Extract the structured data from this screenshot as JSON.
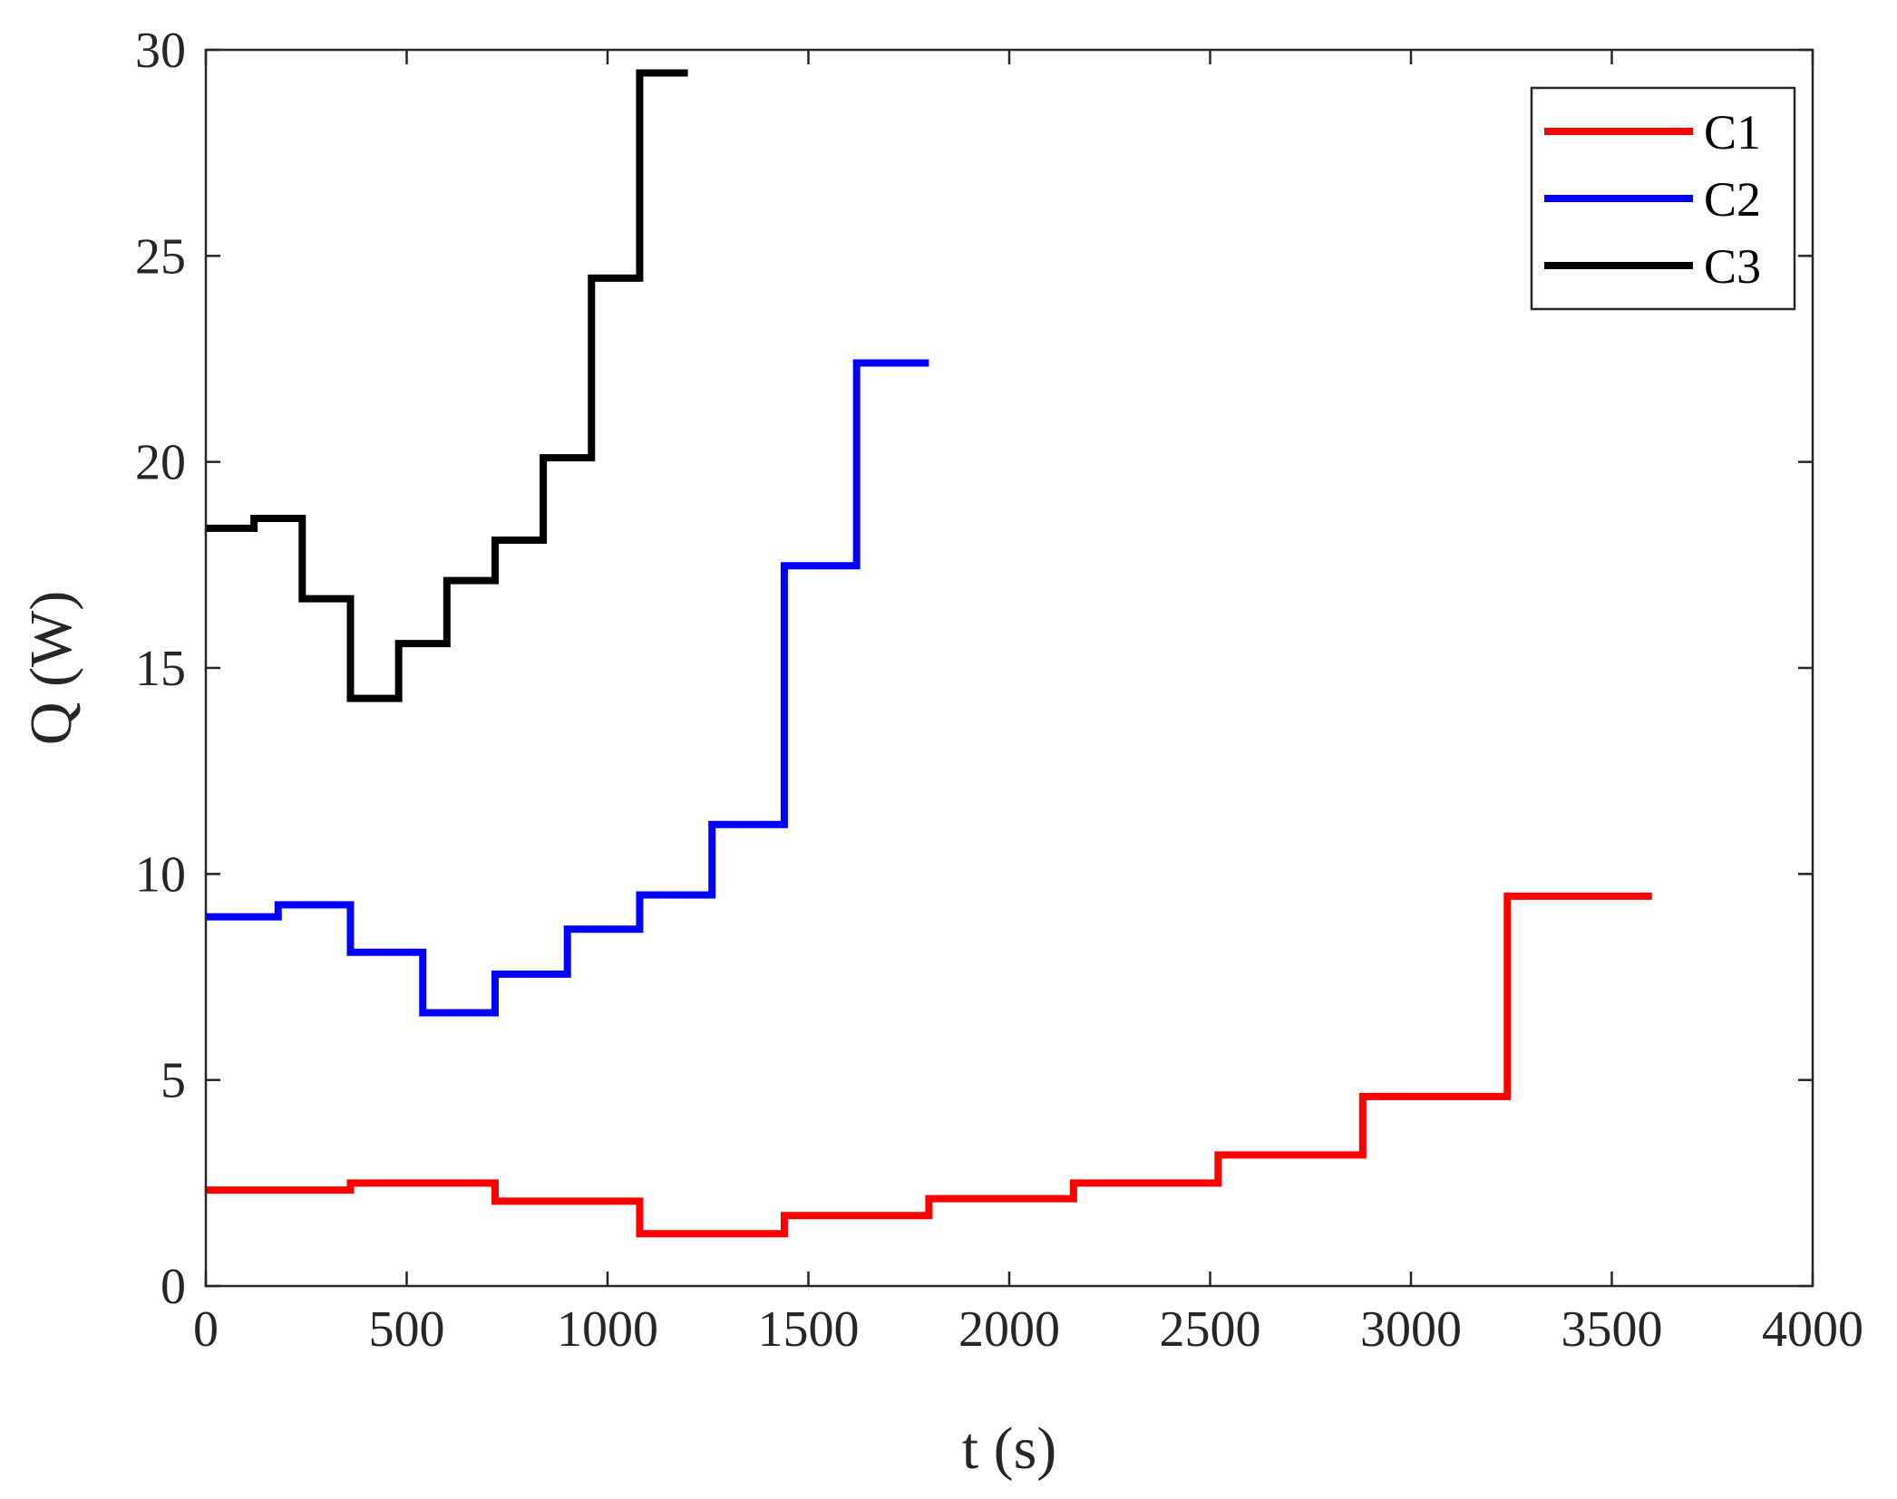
{
  "chart_data": {
    "type": "line",
    "step": "post",
    "xlabel": "t (s)",
    "ylabel": "Q (W)",
    "xlim": [
      0,
      4000
    ],
    "ylim": [
      0,
      30
    ],
    "xticks": [
      0,
      500,
      1000,
      1500,
      2000,
      2500,
      3000,
      3500,
      4000
    ],
    "yticks": [
      0,
      5,
      10,
      15,
      20,
      25,
      30
    ],
    "grid": false,
    "legend": "northeast",
    "series": [
      {
        "name": "C1",
        "color": "#ff0000",
        "x": [
          0,
          360,
          720,
          1080,
          1440,
          1800,
          2160,
          2520,
          2880,
          3240,
          3600
        ],
        "values": [
          2.33,
          2.5,
          2.06,
          1.27,
          1.71,
          2.12,
          2.5,
          3.18,
          4.6,
          9.46,
          9.46
        ]
      },
      {
        "name": "C2",
        "color": "#0000ff",
        "x": [
          0,
          180,
          360,
          540,
          720,
          900,
          1080,
          1260,
          1440,
          1620,
          1800
        ],
        "values": [
          8.96,
          9.25,
          8.1,
          6.63,
          7.57,
          8.66,
          9.49,
          11.2,
          17.48,
          22.4,
          22.4
        ]
      },
      {
        "name": "C3",
        "color": "#000000",
        "x": [
          0,
          120,
          240,
          360,
          480,
          600,
          720,
          840,
          960,
          1080,
          1200
        ],
        "values": [
          18.39,
          18.63,
          16.68,
          14.26,
          15.59,
          17.12,
          18.1,
          20.1,
          24.46,
          29.44,
          29.44
        ]
      }
    ]
  }
}
